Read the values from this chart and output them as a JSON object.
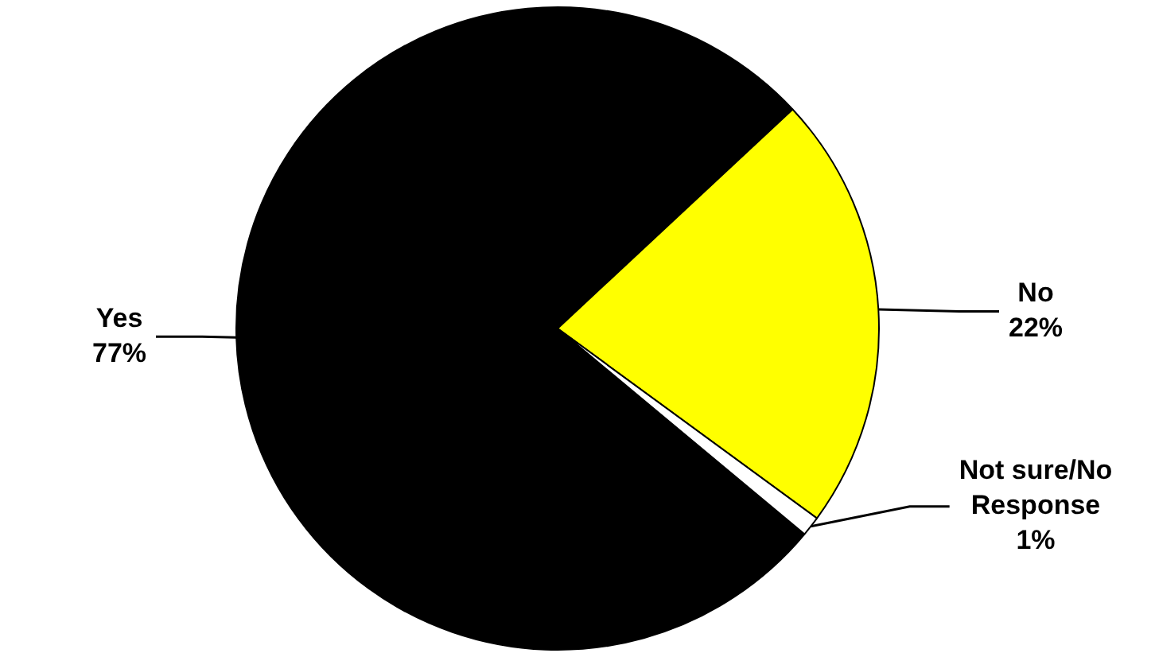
{
  "chart_data": {
    "type": "pie",
    "categories": [
      "Yes",
      "No",
      "Not sure/No Response"
    ],
    "values": [
      77,
      22,
      1
    ],
    "colors": [
      "#000000",
      "#ffff00",
      "#ffffff"
    ],
    "value_labels": [
      "77%",
      "22%",
      "1%"
    ],
    "legend": false
  }
}
